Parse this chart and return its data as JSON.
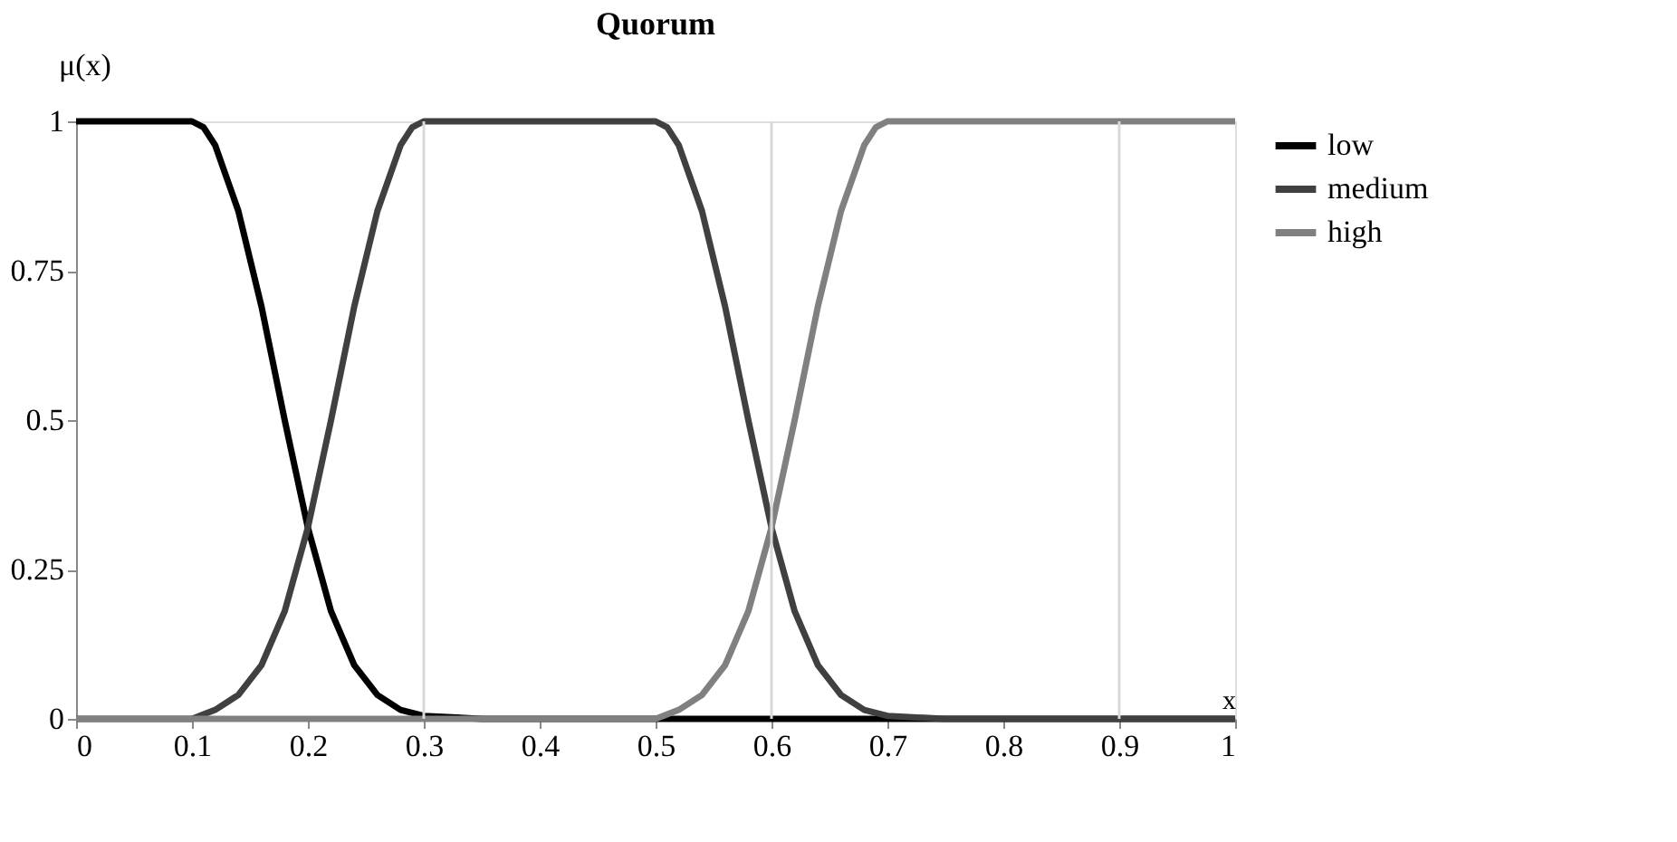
{
  "chart_data": {
    "type": "line",
    "title": "Quorum",
    "xlabel": "x",
    "ylabel": "μ(x)",
    "xlim": [
      0,
      1
    ],
    "xticks": [
      0,
      0.1,
      0.2,
      0.3,
      0.4,
      0.5,
      0.6,
      0.7,
      0.8,
      0.9,
      1
    ],
    "ylim": [
      0,
      1
    ],
    "yticks": [
      0,
      0.25,
      0.5,
      0.75,
      1
    ],
    "grid": false,
    "legend": "right",
    "marker": "none",
    "line_style": "solid",
    "ref_lines": [
      {
        "axis": "x",
        "value": 0.3,
        "label": null,
        "color": "#d9d9d9"
      },
      {
        "axis": "x",
        "value": 0.6,
        "label": null,
        "color": "#d9d9d9"
      },
      {
        "axis": "x",
        "value": 0.9,
        "label": null,
        "color": "#d9d9d9"
      }
    ],
    "series": [
      {
        "name": "low",
        "color": "#000000",
        "x": [
          0,
          0.05,
          0.1,
          0.11,
          0.12,
          0.14,
          0.16,
          0.18,
          0.2,
          0.22,
          0.24,
          0.26,
          0.28,
          0.3,
          0.35,
          1
        ],
        "values": [
          1,
          1,
          1,
          0.99,
          0.96,
          0.85,
          0.69,
          0.5,
          0.32,
          0.18,
          0.09,
          0.04,
          0.015,
          0.005,
          0,
          0
        ]
      },
      {
        "name": "medium",
        "color": "#404040",
        "x": [
          0,
          0.1,
          0.12,
          0.14,
          0.16,
          0.18,
          0.2,
          0.22,
          0.24,
          0.26,
          0.28,
          0.29,
          0.3,
          0.5,
          0.51,
          0.52,
          0.54,
          0.56,
          0.58,
          0.6,
          0.62,
          0.64,
          0.66,
          0.68,
          0.7,
          0.75,
          1
        ],
        "values": [
          0,
          0,
          0.015,
          0.04,
          0.09,
          0.18,
          0.32,
          0.5,
          0.69,
          0.85,
          0.96,
          0.99,
          1,
          1,
          0.99,
          0.96,
          0.85,
          0.69,
          0.5,
          0.32,
          0.18,
          0.09,
          0.04,
          0.015,
          0.005,
          0,
          0
        ]
      },
      {
        "name": "high",
        "color": "#808080",
        "x": [
          0,
          0.5,
          0.52,
          0.54,
          0.56,
          0.58,
          0.6,
          0.62,
          0.64,
          0.66,
          0.68,
          0.69,
          0.7,
          1
        ],
        "values": [
          0,
          0,
          0.015,
          0.04,
          0.09,
          0.18,
          0.32,
          0.5,
          0.69,
          0.85,
          0.96,
          0.99,
          1,
          1
        ]
      }
    ]
  }
}
